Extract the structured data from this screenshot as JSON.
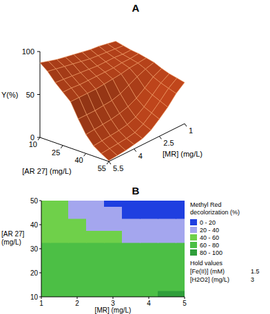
{
  "chart_data": [
    {
      "type": "surface",
      "title": "A",
      "xlabel": "[AR 27] (mg/L)",
      "ylabel": "[MR] (mg/L)",
      "zlabel": "Y(%)",
      "x": [
        10,
        15,
        20,
        25,
        30,
        35,
        40,
        45,
        50,
        55
      ],
      "y": [
        1,
        1.5,
        2,
        2.5,
        3,
        3.5,
        4,
        4.5,
        5,
        5.5
      ],
      "z": [
        [
          68,
          70,
          72,
          73,
          75,
          77,
          79,
          81,
          84,
          87
        ],
        [
          66,
          67,
          68,
          69,
          70,
          72,
          74,
          76,
          78,
          80
        ],
        [
          64,
          64,
          65,
          65,
          65,
          66,
          67,
          68,
          69,
          70
        ],
        [
          63,
          62,
          62,
          61,
          61,
          61,
          61,
          61,
          62,
          62
        ],
        [
          61,
          60,
          59,
          57,
          56,
          55,
          54,
          54,
          54,
          54
        ],
        [
          59,
          56,
          52,
          47,
          42,
          39,
          38,
          37,
          37,
          37
        ],
        [
          55,
          50,
          42,
          35,
          30,
          27,
          25,
          24,
          23,
          22
        ],
        [
          52,
          46,
          37,
          28,
          21,
          17,
          15,
          14,
          13,
          12
        ],
        [
          50,
          43,
          33,
          24,
          16,
          11,
          9,
          8,
          7,
          6
        ],
        [
          48,
          40,
          29,
          20,
          12,
          7,
          5,
          3,
          2,
          1
        ]
      ],
      "xlim": [
        10,
        55
      ],
      "ylim": [
        1,
        5.5
      ],
      "zlim": [
        0,
        100
      ],
      "xticks": [
        10,
        25,
        40,
        55
      ],
      "yticks": [
        1,
        2.5,
        4,
        5.5
      ],
      "zticks": [
        0,
        50,
        100
      ],
      "color": "#c4471c"
    },
    {
      "type": "contour",
      "title": "B",
      "xlabel": "[MR] (mg/L)",
      "ylabel": [
        "[AR 27]",
        "(mg/L)"
      ],
      "x": [
        1,
        1.5,
        2,
        2.5,
        3,
        3.5,
        4,
        4.5,
        5
      ],
      "y": [
        10,
        15,
        20,
        25,
        30,
        35,
        40,
        45,
        50
      ],
      "z": [
        [
          68,
          70,
          72,
          73,
          75,
          77,
          79,
          81,
          84
        ],
        [
          66,
          67,
          68,
          69,
          70,
          72,
          74,
          76,
          78
        ],
        [
          64,
          64,
          65,
          65,
          65,
          66,
          67,
          68,
          69
        ],
        [
          63,
          62,
          62,
          61,
          61,
          61,
          61,
          61,
          62
        ],
        [
          63,
          62,
          61,
          60,
          60,
          61,
          61,
          61,
          62
        ],
        [
          59,
          56,
          52,
          47,
          42,
          39,
          38,
          37,
          37
        ],
        [
          55,
          50,
          42,
          35,
          30,
          27,
          25,
          24,
          23
        ],
        [
          52,
          46,
          37,
          28,
          21,
          17,
          15,
          14,
          13
        ],
        [
          50,
          43,
          33,
          24,
          16,
          11,
          9,
          8,
          7
        ]
      ],
      "xlim": [
        1,
        5
      ],
      "ylim": [
        10,
        50
      ],
      "xticks": [
        1,
        2,
        3,
        4,
        5
      ],
      "yticks": [
        10,
        20,
        30,
        40,
        50
      ],
      "legend_title": [
        "Methyl Red",
        "decolorization (%)"
      ],
      "levels": [
        0,
        20,
        40,
        60,
        80,
        100
      ],
      "level_labels": [
        "0 - 20",
        "20 - 40",
        "40 - 60",
        "60 - 80",
        "80 - 100"
      ],
      "colors": [
        "#1f3fe0",
        "#a4a6ee",
        "#6fd04a",
        "#4cbf45",
        "#2f9e3a"
      ],
      "hold_title": "Hold values",
      "hold_values": [
        {
          "label": "[Fe(II)] (mM)",
          "value": 1.5
        },
        {
          "label": "[H2O2] (mg/L)",
          "value": 3
        }
      ]
    }
  ]
}
